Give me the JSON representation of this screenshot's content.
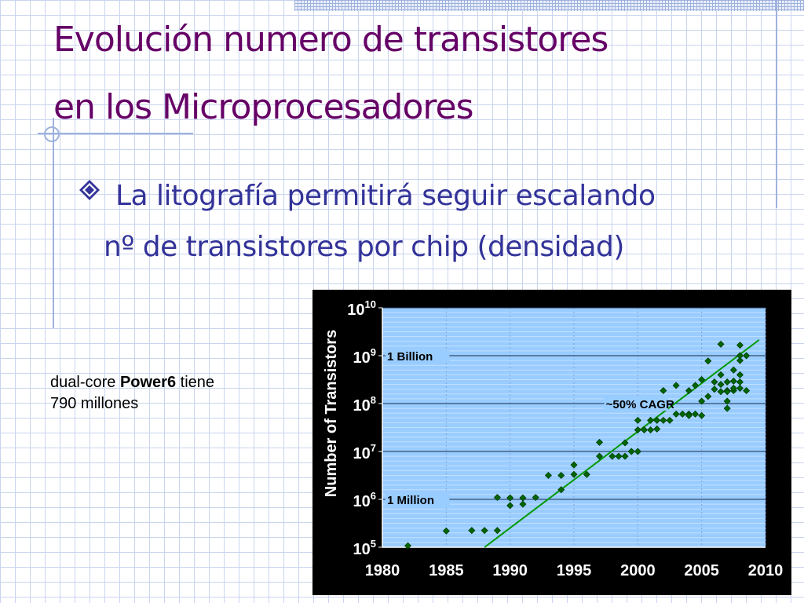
{
  "slide": {
    "title_line1": "Evolución numero de transistores",
    "title_line2": "en los Microprocesadores",
    "bullet_line1": "La litografía permitirá seguir escalando",
    "bullet_line2": "nº de transistores por chip (densidad)",
    "note_prefix": "dual-core ",
    "note_bold": "Power6",
    "note_suffix": " tiene",
    "note_line2": "790 millones"
  },
  "colors": {
    "title": "#660066",
    "bullet": "#333399",
    "chart_bg": "#99ccff",
    "points": "#006600",
    "trend": "#009900"
  },
  "chart_data": {
    "type": "scatter",
    "ylabel": "Number of Transistors",
    "xlabel": "",
    "xlim": [
      1980,
      2010
    ],
    "ylim_log10": [
      5,
      10
    ],
    "log_scale_y": true,
    "x_ticks": [
      "1980",
      "1985",
      "1990",
      "1995",
      "2000",
      "2005",
      "2010"
    ],
    "y_tick_labels": [
      {
        "base": "10",
        "exp": "10"
      },
      {
        "base": "10",
        "exp": "9"
      },
      {
        "base": "10",
        "exp": "8"
      },
      {
        "base": "10",
        "exp": "7"
      },
      {
        "base": "10",
        "exp": "6"
      },
      {
        "base": "10",
        "exp": "5"
      }
    ],
    "annotations": [
      {
        "text": "1 Billion",
        "y_log": 9
      },
      {
        "text": "~50% CAGR",
        "y_log": 8
      },
      {
        "text": "1 Million",
        "y_log": 6
      }
    ],
    "trend": {
      "x": [
        1988.0,
        2009.5
      ],
      "y_log": [
        5.0,
        9.33
      ]
    },
    "points": [
      {
        "x": 1982,
        "y_log": 5.03
      },
      {
        "x": 1985,
        "y_log": 5.34
      },
      {
        "x": 1987,
        "y_log": 5.35
      },
      {
        "x": 1988,
        "y_log": 5.35
      },
      {
        "x": 1989,
        "y_log": 5.35
      },
      {
        "x": 1989,
        "y_log": 6.04
      },
      {
        "x": 1990,
        "y_log": 6.03
      },
      {
        "x": 1990,
        "y_log": 5.87
      },
      {
        "x": 1991,
        "y_log": 6.03
      },
      {
        "x": 1991,
        "y_log": 5.9
      },
      {
        "x": 1992,
        "y_log": 6.04
      },
      {
        "x": 1993,
        "y_log": 6.5
      },
      {
        "x": 1994,
        "y_log": 6.2
      },
      {
        "x": 1994,
        "y_log": 6.5
      },
      {
        "x": 1995,
        "y_log": 6.52
      },
      {
        "x": 1995,
        "y_log": 6.72
      },
      {
        "x": 1996,
        "y_log": 6.52
      },
      {
        "x": 1997,
        "y_log": 7.19
      },
      {
        "x": 1997,
        "y_log": 6.9
      },
      {
        "x": 1998,
        "y_log": 6.9
      },
      {
        "x": 1998.5,
        "y_log": 6.9
      },
      {
        "x": 1999,
        "y_log": 6.9
      },
      {
        "x": 1999,
        "y_log": 7.18
      },
      {
        "x": 1999.5,
        "y_log": 7.0
      },
      {
        "x": 2000,
        "y_log": 7.0
      },
      {
        "x": 2000,
        "y_log": 7.45
      },
      {
        "x": 2000,
        "y_log": 7.65
      },
      {
        "x": 2000.5,
        "y_log": 7.45
      },
      {
        "x": 2001,
        "y_log": 7.65
      },
      {
        "x": 2001,
        "y_log": 7.45
      },
      {
        "x": 2001.5,
        "y_log": 7.65
      },
      {
        "x": 2001.5,
        "y_log": 7.47
      },
      {
        "x": 2002,
        "y_log": 7.65
      },
      {
        "x": 2002,
        "y_log": 8.27
      },
      {
        "x": 2002.5,
        "y_log": 7.65
      },
      {
        "x": 2003,
        "y_log": 8.38
      },
      {
        "x": 2003,
        "y_log": 7.78
      },
      {
        "x": 2003.5,
        "y_log": 7.78
      },
      {
        "x": 2004,
        "y_log": 7.78
      },
      {
        "x": 2004,
        "y_log": 7.75
      },
      {
        "x": 2004,
        "y_log": 8.27
      },
      {
        "x": 2004.5,
        "y_log": 8.38
      },
      {
        "x": 2004.5,
        "y_log": 7.78
      },
      {
        "x": 2005,
        "y_log": 8.05
      },
      {
        "x": 2005,
        "y_log": 8.5
      },
      {
        "x": 2005,
        "y_log": 7.75
      },
      {
        "x": 2005.5,
        "y_log": 8.15
      },
      {
        "x": 2005.5,
        "y_log": 8.89
      },
      {
        "x": 2006,
        "y_log": 8.45
      },
      {
        "x": 2006,
        "y_log": 8.3
      },
      {
        "x": 2006.5,
        "y_log": 8.4
      },
      {
        "x": 2006.5,
        "y_log": 8.25
      },
      {
        "x": 2006.5,
        "y_log": 8.6
      },
      {
        "x": 2007,
        "y_log": 8.05
      },
      {
        "x": 2007,
        "y_log": 7.9
      },
      {
        "x": 2007,
        "y_log": 8.27
      },
      {
        "x": 2007,
        "y_log": 8.45
      },
      {
        "x": 2007,
        "y_log": 8.25
      },
      {
        "x": 2007.5,
        "y_log": 8.27
      },
      {
        "x": 2007.5,
        "y_log": 8.32
      },
      {
        "x": 2007.5,
        "y_log": 8.47
      },
      {
        "x": 2007.5,
        "y_log": 8.7
      },
      {
        "x": 2008,
        "y_log": 8.32
      },
      {
        "x": 2008,
        "y_log": 8.45
      },
      {
        "x": 2008,
        "y_log": 8.9
      },
      {
        "x": 2008,
        "y_log": 9.0
      },
      {
        "x": 2008,
        "y_log": 8.6
      },
      {
        "x": 2008.5,
        "y_log": 8.27
      },
      {
        "x": 2006.5,
        "y_log": 9.24
      },
      {
        "x": 2008,
        "y_log": 9.22
      },
      {
        "x": 2008.5,
        "y_log": 9.0
      }
    ]
  }
}
